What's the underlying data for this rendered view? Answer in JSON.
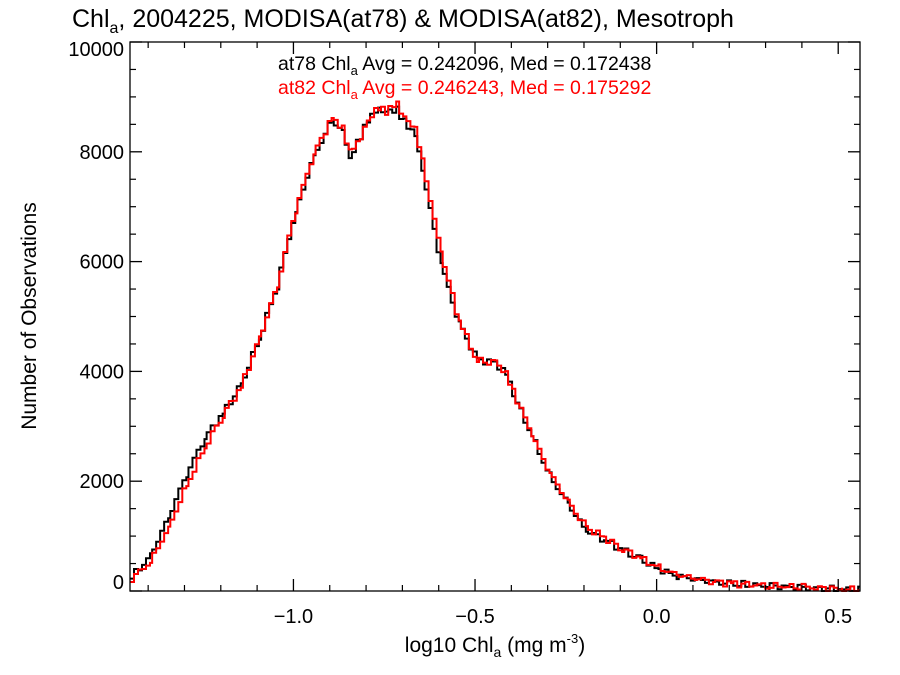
{
  "chart_data": {
    "type": "line",
    "style": "histogram-step",
    "title": {
      "pre": "Chl",
      "sub": "a",
      "post": ", 2004225, MODISA(at78) & MODISA(at82), Mesotroph"
    },
    "xlabel": {
      "pre": "log10 Chl",
      "sub": "a",
      "mid": " (mg m",
      "sup": "-3",
      "post": ")"
    },
    "ylabel": "Number of Observations",
    "xlim": [
      -1.45,
      0.56
    ],
    "ylim": [
      0,
      10000
    ],
    "x_ticks": [
      -1.0,
      -0.5,
      0.0,
      0.5
    ],
    "x_tick_labels": [
      "−1.0",
      "−0.5",
      "0.0",
      "0.5"
    ],
    "y_ticks": [
      0,
      2000,
      4000,
      6000,
      8000,
      10000
    ],
    "y_tick_labels": [
      "0",
      "2000",
      "4000",
      "6000",
      "8000",
      "10000"
    ],
    "grid": false,
    "legend_position": "top-center",
    "series": [
      {
        "name": "at78",
        "color": "#000000",
        "label": {
          "pre": "at78 Chl",
          "sub": "a",
          "post": " Avg = 0.242096, Med = 0.172438"
        },
        "x": [
          -1.45,
          -1.4,
          -1.35,
          -1.3,
          -1.25,
          -1.2,
          -1.15,
          -1.1,
          -1.05,
          -1.0,
          -0.95,
          -0.9,
          -0.87,
          -0.85,
          -0.82,
          -0.8,
          -0.77,
          -0.75,
          -0.72,
          -0.7,
          -0.67,
          -0.65,
          -0.6,
          -0.55,
          -0.5,
          -0.45,
          -0.42,
          -0.4,
          -0.35,
          -0.3,
          -0.25,
          -0.2,
          -0.15,
          -0.1,
          -0.05,
          0.0,
          0.05,
          0.1,
          0.15,
          0.2,
          0.3,
          0.4,
          0.5,
          0.56
        ],
        "y": [
          250,
          620,
          1320,
          2110,
          2780,
          3230,
          3730,
          4580,
          5560,
          6880,
          7900,
          8550,
          8420,
          7900,
          8250,
          8580,
          8750,
          8700,
          8800,
          8550,
          8350,
          7700,
          6000,
          4900,
          4220,
          4150,
          4000,
          3600,
          2850,
          2100,
          1600,
          1100,
          950,
          750,
          580,
          400,
          280,
          220,
          170,
          125,
          95,
          60,
          35,
          10
        ]
      },
      {
        "name": "at82",
        "color": "#ff0000",
        "label": {
          "pre": "at82 Chl",
          "sub": "a",
          "post": " Avg = 0.246243, Med = 0.175292"
        },
        "x": [
          -1.45,
          -1.4,
          -1.35,
          -1.3,
          -1.25,
          -1.2,
          -1.15,
          -1.1,
          -1.05,
          -1.0,
          -0.95,
          -0.9,
          -0.87,
          -0.85,
          -0.82,
          -0.8,
          -0.77,
          -0.75,
          -0.72,
          -0.7,
          -0.67,
          -0.65,
          -0.6,
          -0.55,
          -0.5,
          -0.45,
          -0.42,
          -0.4,
          -0.35,
          -0.3,
          -0.25,
          -0.2,
          -0.15,
          -0.1,
          -0.05,
          0.0,
          0.05,
          0.1,
          0.15,
          0.2,
          0.3,
          0.4,
          0.5,
          0.56
        ],
        "y": [
          230,
          520,
          1130,
          1900,
          2600,
          3200,
          3700,
          4570,
          5550,
          6920,
          7950,
          8600,
          8460,
          8000,
          8280,
          8600,
          8780,
          8730,
          8850,
          8600,
          8450,
          7850,
          6200,
          4950,
          4200,
          4150,
          4010,
          3650,
          2880,
          2160,
          1640,
          1160,
          980,
          770,
          600,
          420,
          300,
          230,
          180,
          135,
          100,
          65,
          38,
          12
        ]
      }
    ]
  }
}
